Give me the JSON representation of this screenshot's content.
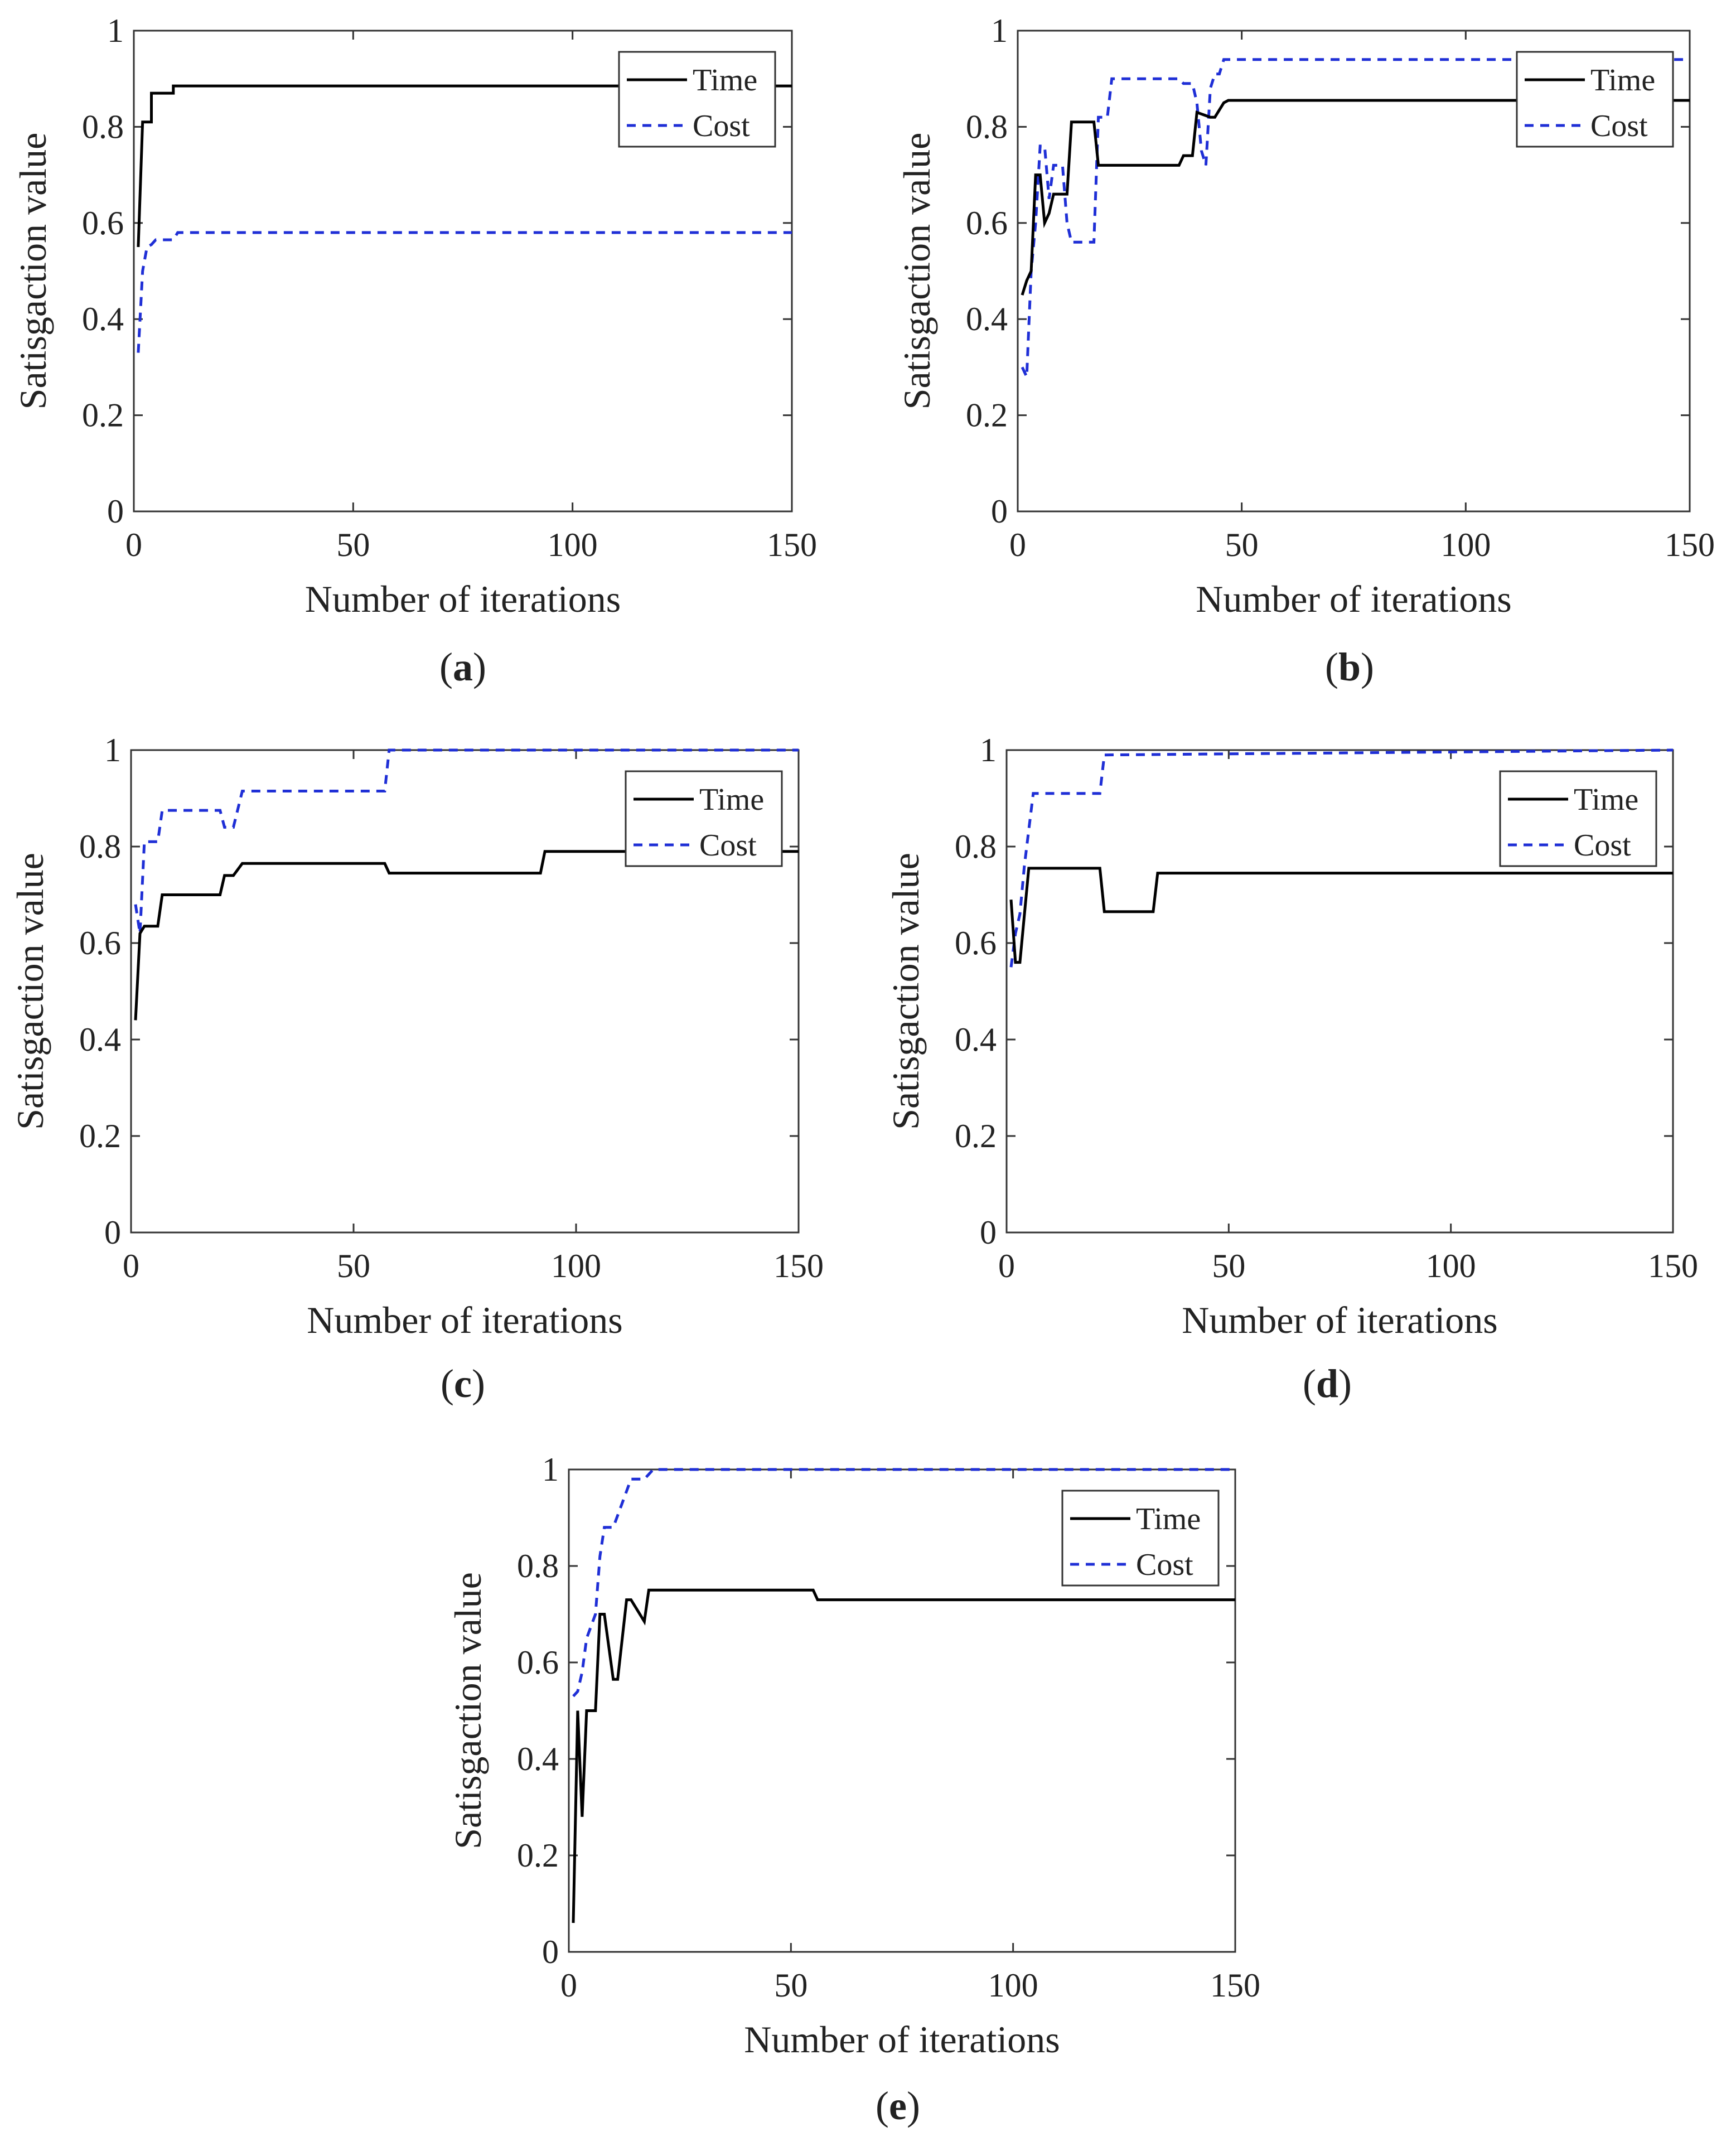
{
  "figure": {
    "legend_labels": {
      "time": "Time",
      "cost": "Cost"
    },
    "colors": {
      "time": "#000000",
      "cost": "#1f2fd6",
      "axis": "#333333",
      "text": "#222222"
    }
  },
  "chart_data": [
    {
      "id": "a",
      "caption_letter": "a",
      "caption_open": "(",
      "caption_close": ")",
      "type": "line",
      "xlabel": "Number of iterations",
      "ylabel": "Satisgaction value",
      "xlim": [
        0,
        150
      ],
      "ylim": [
        0,
        1
      ],
      "xticks": [
        0,
        50,
        100,
        150
      ],
      "xtick_labels": [
        "0",
        "50",
        "100",
        "150"
      ],
      "yticks": [
        0,
        0.2,
        0.4,
        0.6,
        0.8,
        1
      ],
      "ytick_labels": [
        "0",
        "0.2",
        "0.4",
        "0.6",
        "0.8",
        "1"
      ],
      "legend_location": "top-right",
      "series": [
        {
          "name": "Time",
          "style": "solid",
          "x": [
            1,
            2,
            2,
            4,
            4,
            9,
            9,
            150
          ],
          "y": [
            0.55,
            0.81,
            0.81,
            0.81,
            0.87,
            0.87,
            0.885,
            0.885
          ]
        },
        {
          "name": "Cost",
          "style": "dashed",
          "x": [
            1,
            2,
            3,
            4,
            5,
            9,
            10,
            150
          ],
          "y": [
            0.33,
            0.5,
            0.55,
            0.555,
            0.565,
            0.565,
            0.58,
            0.58
          ]
        }
      ]
    },
    {
      "id": "b",
      "caption_letter": "b",
      "caption_open": "(",
      "caption_close": ")",
      "type": "line",
      "xlabel": "Number of iterations",
      "ylabel": "Satisgaction value",
      "xlim": [
        0,
        150
      ],
      "ylim": [
        0,
        1
      ],
      "xticks": [
        0,
        50,
        100,
        150
      ],
      "xtick_labels": [
        "0",
        "50",
        "100",
        "150"
      ],
      "yticks": [
        0,
        0.2,
        0.4,
        0.6,
        0.8,
        1
      ],
      "ytick_labels": [
        "0",
        "0.2",
        "0.4",
        "0.6",
        "0.8",
        "1"
      ],
      "legend_location": "top-right",
      "series": [
        {
          "name": "Time",
          "style": "solid",
          "x": [
            1,
            2,
            3,
            4,
            5,
            6,
            7,
            8,
            11,
            12,
            17,
            18,
            36,
            37,
            39,
            40,
            43,
            44,
            46,
            47,
            150
          ],
          "y": [
            0.45,
            0.48,
            0.5,
            0.7,
            0.7,
            0.6,
            0.62,
            0.66,
            0.66,
            0.81,
            0.81,
            0.72,
            0.72,
            0.74,
            0.74,
            0.83,
            0.82,
            0.82,
            0.85,
            0.855,
            0.855
          ]
        },
        {
          "name": "Cost",
          "style": "dashed",
          "x": [
            1,
            2,
            3,
            4,
            5,
            6,
            7,
            8,
            10,
            11,
            12,
            17,
            18,
            20,
            21,
            36,
            37,
            39,
            40,
            41,
            42,
            43,
            44,
            45,
            46,
            47,
            150
          ],
          "y": [
            0.3,
            0.28,
            0.5,
            0.6,
            0.76,
            0.76,
            0.65,
            0.72,
            0.72,
            0.6,
            0.56,
            0.56,
            0.82,
            0.82,
            0.9,
            0.9,
            0.89,
            0.89,
            0.85,
            0.75,
            0.72,
            0.88,
            0.91,
            0.91,
            0.94,
            0.94,
            0.94
          ]
        }
      ]
    },
    {
      "id": "c",
      "caption_letter": "c",
      "caption_open": "(",
      "caption_close": ")",
      "type": "line",
      "xlabel": "Number of iterations",
      "ylabel": "Satisgaction value",
      "xlim": [
        0,
        150
      ],
      "ylim": [
        0,
        1
      ],
      "xticks": [
        0,
        50,
        100,
        150
      ],
      "xtick_labels": [
        "0",
        "50",
        "100",
        "150"
      ],
      "yticks": [
        0,
        0.2,
        0.4,
        0.6,
        0.8,
        1
      ],
      "ytick_labels": [
        "0",
        "0.2",
        "0.4",
        "0.6",
        "0.8",
        "1"
      ],
      "legend_location": "top-right",
      "series": [
        {
          "name": "Time",
          "style": "solid",
          "x": [
            1,
            2,
            3,
            6,
            7,
            20,
            21,
            23,
            25,
            57,
            58,
            92,
            93,
            150
          ],
          "y": [
            0.44,
            0.62,
            0.635,
            0.635,
            0.7,
            0.7,
            0.74,
            0.74,
            0.765,
            0.765,
            0.745,
            0.745,
            0.79,
            0.79
          ]
        },
        {
          "name": "Cost",
          "style": "dashed",
          "x": [
            1,
            2,
            3,
            6,
            7,
            20,
            21,
            23,
            25,
            57,
            58,
            150
          ],
          "y": [
            0.68,
            0.62,
            0.81,
            0.81,
            0.875,
            0.875,
            0.84,
            0.84,
            0.915,
            0.915,
            1,
            1
          ]
        }
      ]
    },
    {
      "id": "d",
      "caption_letter": "d",
      "caption_open": "(",
      "caption_close": ")",
      "type": "line",
      "xlabel": "Number of iterations",
      "ylabel": "Satisgaction value",
      "xlim": [
        0,
        150
      ],
      "ylim": [
        0,
        1
      ],
      "xticks": [
        0,
        50,
        100,
        150
      ],
      "xtick_labels": [
        "0",
        "50",
        "100",
        "150"
      ],
      "yticks": [
        0,
        0.2,
        0.4,
        0.6,
        0.8,
        1
      ],
      "ytick_labels": [
        "0",
        "0.2",
        "0.4",
        "0.6",
        "0.8",
        "1"
      ],
      "legend_location": "top-right",
      "series": [
        {
          "name": "Time",
          "style": "solid",
          "x": [
            1,
            2,
            3,
            5,
            21,
            22,
            33,
            34,
            150
          ],
          "y": [
            0.69,
            0.56,
            0.56,
            0.755,
            0.755,
            0.665,
            0.665,
            0.745,
            0.745
          ]
        },
        {
          "name": "Cost",
          "style": "dashed",
          "x": [
            1,
            2,
            3,
            4,
            6,
            21,
            22,
            150
          ],
          "y": [
            0.55,
            0.62,
            0.66,
            0.76,
            0.91,
            0.91,
            0.99,
            1
          ]
        }
      ]
    },
    {
      "id": "e",
      "caption_letter": "e",
      "caption_open": "(",
      "caption_close": ")",
      "type": "line",
      "xlabel": "Number of iterations",
      "ylabel": "Satisgaction value",
      "xlim": [
        0,
        150
      ],
      "ylim": [
        0,
        1
      ],
      "xticks": [
        0,
        50,
        100,
        150
      ],
      "xtick_labels": [
        "0",
        "50",
        "100",
        "150"
      ],
      "yticks": [
        0,
        0.2,
        0.4,
        0.6,
        0.8,
        1
      ],
      "ytick_labels": [
        "0",
        "0.2",
        "0.4",
        "0.6",
        "0.8",
        "1"
      ],
      "legend_location": "top-right",
      "series": [
        {
          "name": "Time",
          "style": "solid",
          "x": [
            1,
            2,
            3,
            4,
            6,
            7,
            8,
            10,
            11,
            13,
            14,
            17,
            18,
            19,
            55,
            56,
            150
          ],
          "y": [
            0.06,
            0.5,
            0.28,
            0.5,
            0.5,
            0.7,
            0.7,
            0.565,
            0.565,
            0.73,
            0.73,
            0.685,
            0.75,
            0.75,
            0.75,
            0.73,
            0.73
          ]
        },
        {
          "name": "Cost",
          "style": "dashed",
          "x": [
            1,
            2,
            3,
            4,
            6,
            7,
            8,
            10,
            12,
            14,
            17,
            19,
            150
          ],
          "y": [
            0.53,
            0.54,
            0.58,
            0.65,
            0.7,
            0.82,
            0.88,
            0.88,
            0.93,
            0.98,
            0.98,
            1,
            1
          ]
        }
      ]
    }
  ]
}
